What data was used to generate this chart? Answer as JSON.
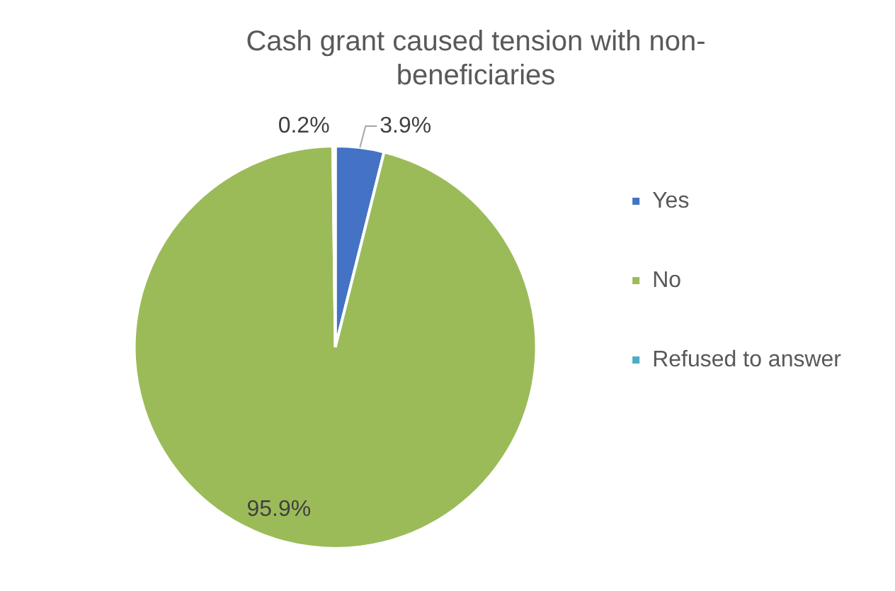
{
  "chart_data": {
    "type": "pie",
    "title": "Cash grant caused tension with non-beneficiaries",
    "categories": [
      "Yes",
      "No",
      "Refused to answer"
    ],
    "values": [
      3.9,
      95.9,
      0.2
    ],
    "colors": [
      "#4472c4",
      "#9bbb59",
      "#4bacc6"
    ],
    "value_labels": [
      "3.9%",
      "95.9%",
      "0.2%"
    ],
    "legend": "right"
  }
}
